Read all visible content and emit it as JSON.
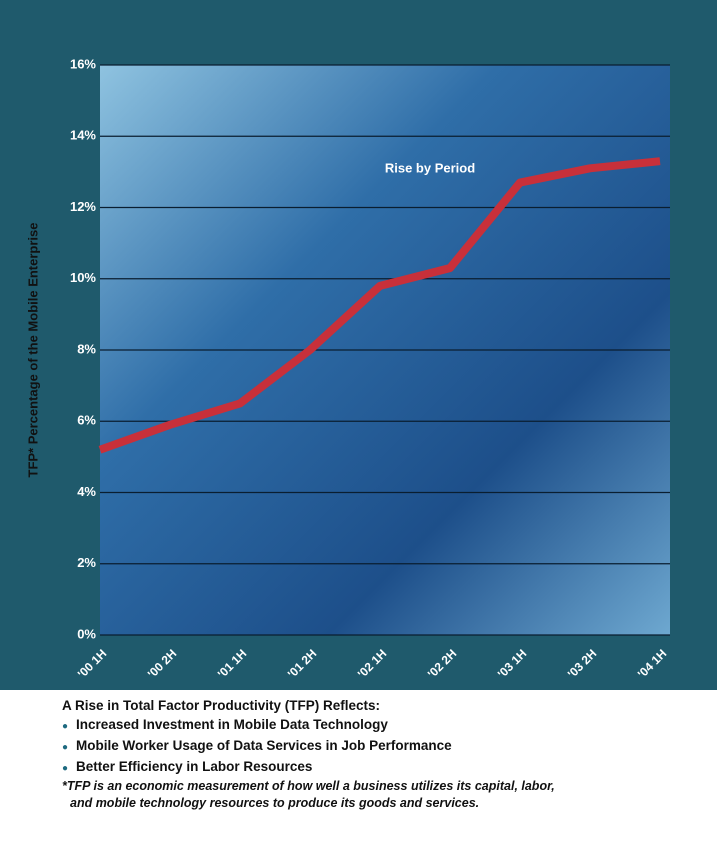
{
  "chart_data": {
    "type": "line",
    "y_label": "TFP* Percentage of the Mobile Enterprise",
    "categories": [
      "'00 1H",
      "'00 2H",
      "'01 1H",
      "'01 2H",
      "'02 1H",
      "'02 2H",
      "'03 1H",
      "'03 2H",
      "'04 1H"
    ],
    "series": [
      {
        "name": "Rise by Period",
        "color": "#c8303a",
        "values": [
          5.2,
          5.9,
          6.5,
          8.0,
          9.8,
          10.3,
          12.7,
          13.1,
          13.3
        ]
      }
    ],
    "ylim": [
      0,
      16
    ],
    "yticks": [
      {
        "value": 0,
        "label": "0%"
      },
      {
        "value": 2,
        "label": "2%"
      },
      {
        "value": 4,
        "label": "4%"
      },
      {
        "value": 6,
        "label": "6%"
      },
      {
        "value": 8,
        "label": "8%"
      },
      {
        "value": 10,
        "label": "10%"
      },
      {
        "value": 12,
        "label": "12%"
      },
      {
        "value": 14,
        "label": "14%"
      },
      {
        "value": 16,
        "label": "16%"
      }
    ],
    "grid": true
  },
  "notes": {
    "heading": "A Rise in Total Factor Productivity (TFP) Reflects:",
    "bullets": [
      "Increased Investment in Mobile Data Technology",
      "Mobile Worker Usage of Data Services in Job Performance",
      "Better Efficiency in Labor Resources"
    ],
    "footnote": [
      "*TFP is an economic measurement of how well a business utilizes its capital, labor,",
      "and mobile technology resources to produce its goods and services."
    ]
  }
}
